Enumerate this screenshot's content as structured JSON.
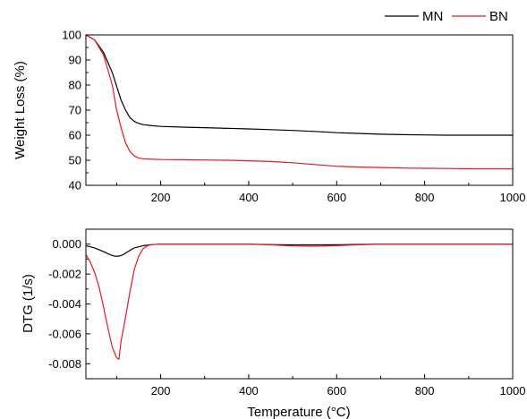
{
  "chart_data": [
    {
      "type": "line",
      "title": "",
      "xlabel": "",
      "ylabel": "Weight Loss (%)",
      "xlim": [
        30,
        1000
      ],
      "ylim": [
        40,
        100
      ],
      "xticks": [
        200,
        400,
        600,
        800,
        1000
      ],
      "yticks": [
        40,
        50,
        60,
        70,
        80,
        90,
        100
      ],
      "xtick_labels": [
        "200",
        "400",
        "600",
        "800",
        "1000"
      ],
      "ytick_labels": [
        "40",
        "50",
        "60",
        "70",
        "80",
        "90",
        "100"
      ],
      "grid": false,
      "legend": "top-right",
      "series": [
        {
          "name": "MN",
          "color": "#000000",
          "x": [
            30,
            50,
            70,
            90,
            100,
            110,
            120,
            130,
            140,
            150,
            160,
            180,
            200,
            250,
            300,
            400,
            450,
            500,
            550,
            600,
            650,
            700,
            750,
            800,
            850,
            900,
            950,
            1000
          ],
          "y": [
            100,
            98,
            93,
            85,
            79.5,
            74,
            70,
            67,
            65.5,
            64.7,
            64.2,
            63.8,
            63.5,
            63.2,
            63,
            62.5,
            62.2,
            61.9,
            61.5,
            61,
            60.7,
            60.4,
            60.2,
            60.1,
            60,
            60,
            60,
            60
          ]
        },
        {
          "name": "BN",
          "color": "#e41a1c",
          "x": [
            30,
            50,
            70,
            90,
            100,
            110,
            120,
            130,
            140,
            150,
            160,
            180,
            200,
            250,
            300,
            350,
            400,
            450,
            500,
            550,
            600,
            650,
            700,
            750,
            800,
            850,
            900,
            950,
            1000
          ],
          "y": [
            100,
            98,
            92,
            80,
            70,
            63,
            57,
            53.5,
            51.7,
            50.9,
            50.6,
            50.4,
            50.3,
            50.2,
            50.1,
            50,
            49.8,
            49.5,
            49,
            48.3,
            47.6,
            47.3,
            47.1,
            46.9,
            46.8,
            46.7,
            46.6,
            46.6,
            46.6
          ]
        }
      ]
    },
    {
      "type": "line",
      "title": "",
      "xlabel": "Temperature (°C)",
      "ylabel": "DTG (1/s)",
      "xlim": [
        30,
        1000
      ],
      "ylim": [
        -0.009,
        0.001
      ],
      "xticks": [
        200,
        400,
        600,
        800,
        1000
      ],
      "yticks": [
        0,
        -0.002,
        -0.004,
        -0.006,
        -0.008
      ],
      "xtick_labels": [
        "200",
        "400",
        "600",
        "800",
        "1000"
      ],
      "ytick_labels": [
        "0.000",
        "-0.002",
        "-0.004",
        "-0.006",
        "-0.008"
      ],
      "grid": false,
      "series": [
        {
          "name": "MN",
          "color": "#000000",
          "x": [
            30,
            50,
            70,
            85,
            95,
            105,
            115,
            125,
            140,
            160,
            180,
            200,
            300,
            400,
            450,
            500,
            550,
            600,
            650,
            700,
            800,
            900,
            1000
          ],
          "y": [
            -0.0001,
            -0.00025,
            -0.0005,
            -0.0007,
            -0.0008,
            -0.0008,
            -0.0007,
            -0.0005,
            -0.00025,
            -0.0001,
            -3e-05,
            0,
            0,
            0,
            -3e-05,
            -5e-05,
            -5e-05,
            -4e-05,
            -2e-05,
            0,
            0,
            0,
            0
          ]
        },
        {
          "name": "BN",
          "color": "#e41a1c",
          "x": [
            30,
            40,
            50,
            60,
            70,
            80,
            90,
            100,
            105,
            110,
            120,
            130,
            140,
            150,
            160,
            170,
            180,
            200,
            300,
            400,
            450,
            500,
            550,
            600,
            650,
            700,
            800,
            900,
            1000
          ],
          "y": [
            -0.0007,
            -0.0012,
            -0.0019,
            -0.0029,
            -0.0042,
            -0.0056,
            -0.0069,
            -0.0076,
            -0.0077,
            -0.0065,
            -0.0049,
            -0.0032,
            -0.0017,
            -0.0008,
            -0.0003,
            -0.0001,
            -3e-05,
            0,
            0,
            0,
            -5e-05,
            -0.00012,
            -0.00014,
            -0.0001,
            -4e-05,
            0,
            0,
            0,
            0
          ]
        }
      ]
    }
  ]
}
